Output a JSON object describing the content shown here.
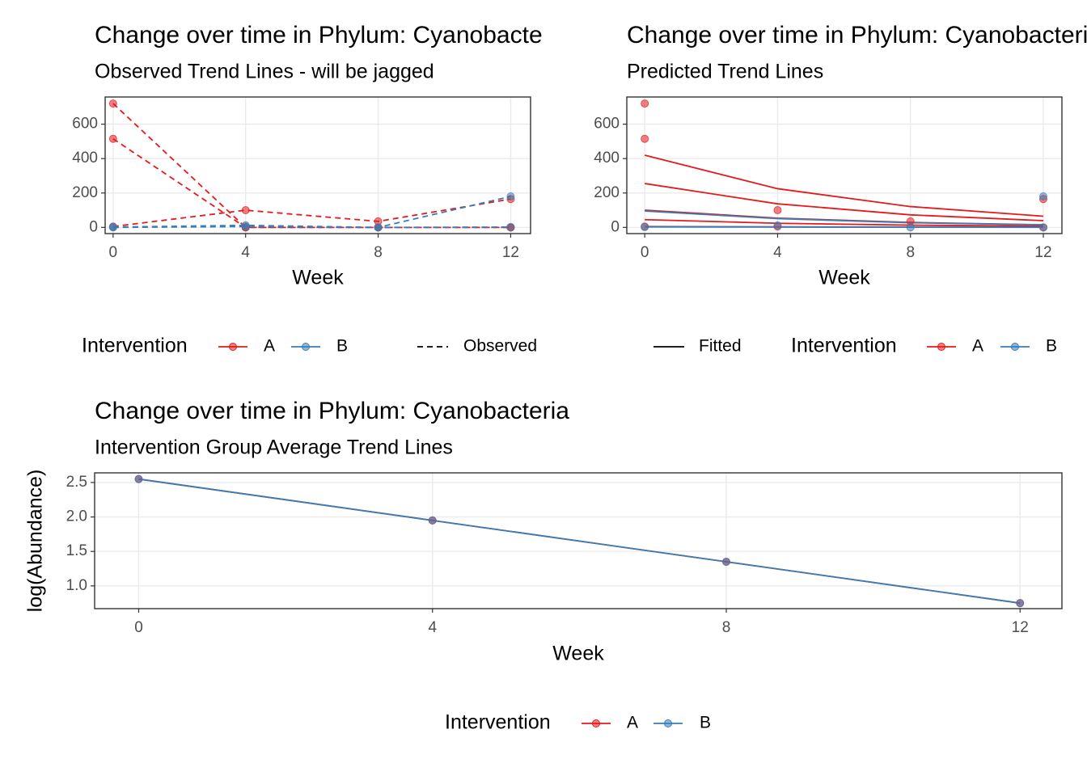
{
  "chart_data": [
    {
      "type": "line",
      "title": "Change over time in Phylum: Cyanobacteria",
      "subtitle": "Observed Trend Lines - will be jagged",
      "x_label": "Week",
      "x": [
        0,
        4,
        8,
        12
      ],
      "xlim": [
        -0.24,
        12.6
      ],
      "xticks": [
        0,
        4,
        8,
        12
      ],
      "ylim": [
        -36,
        758
      ],
      "yticks": [
        0,
        200,
        400,
        600
      ],
      "grid": true,
      "legend": "bottom",
      "legend_title": "Intervention",
      "line_key": {
        "label": "Observed",
        "style": "dashed"
      },
      "series": [
        {
          "name": "A",
          "color": "#E41A1C",
          "lines": [
            [
              720,
              0,
              0,
              0
            ],
            [
              515,
              0,
              0,
              0
            ],
            [
              5,
              100,
              35,
              165
            ]
          ]
        },
        {
          "name": "B",
          "color": "#377EB8",
          "lines": [
            [
              2,
              12,
              0,
              180
            ],
            [
              0,
              5,
              0,
              2
            ]
          ]
        }
      ]
    },
    {
      "type": "line",
      "title": "Change over time in Phylum: Cyanobacteria",
      "subtitle": "Predicted Trend Lines",
      "x_label": "Week",
      "x": [
        0,
        4,
        8,
        12
      ],
      "xlim": [
        -0.54,
        12.56
      ],
      "xticks": [
        0,
        4,
        8,
        12
      ],
      "ylim": [
        -36,
        758
      ],
      "yticks": [
        0,
        200,
        400,
        600
      ],
      "grid": true,
      "legend": "bottom",
      "legend_title": "Intervention",
      "line_key": {
        "label": "Fitted",
        "style": "solid"
      },
      "series": [
        {
          "name": "A",
          "color": "#E41A1C",
          "lines": [
            [
              420,
              225,
              121,
              65
            ],
            [
              255,
              137,
              73,
              39
            ],
            [
              100,
              54,
              29,
              15
            ],
            [
              45,
              24,
              13,
              7
            ],
            [
              5,
              3,
              1.5,
              1
            ]
          ],
          "points": {
            "x": [
              0,
              0,
              0,
              4,
              4,
              8,
              12,
              12
            ],
            "values": [
              720,
              515,
              5,
              100,
              5,
              35,
              165,
              0
            ]
          }
        },
        {
          "name": "B",
          "color": "#377EB8",
          "lines": [
            [
              95,
              51,
              27,
              15
            ],
            [
              3,
              2,
              1,
              0.5
            ]
          ],
          "points": {
            "x": [
              0,
              4,
              8,
              12,
              12
            ],
            "values": [
              2,
              12,
              0,
              180,
              0
            ]
          }
        }
      ]
    },
    {
      "type": "line",
      "title": "Change over time in Phylum: Cyanobacteria",
      "subtitle": "Intervention Group Average Trend Lines",
      "x_label": "Week",
      "y_label": "log(Abundance)",
      "x": [
        0,
        4,
        8,
        12
      ],
      "xlim": [
        -0.6,
        12.57
      ],
      "xticks": [
        0,
        4,
        8,
        12
      ],
      "ylim": [
        0.67,
        2.64
      ],
      "yticks": [
        {
          "value": 1,
          "label": "1.0"
        },
        1.5,
        {
          "value": 2,
          "label": "2.0"
        },
        2.5
      ],
      "grid": true,
      "legend": "bottom",
      "legend_title": "Intervention",
      "series": [
        {
          "name": "A",
          "color": "#E41A1C",
          "lines": [
            [
              2.55,
              1.95,
              1.35,
              0.75
            ]
          ]
        },
        {
          "name": "B",
          "color": "#377EB8",
          "lines": [
            [
              2.55,
              1.95,
              1.35,
              0.75
            ]
          ]
        }
      ]
    }
  ]
}
